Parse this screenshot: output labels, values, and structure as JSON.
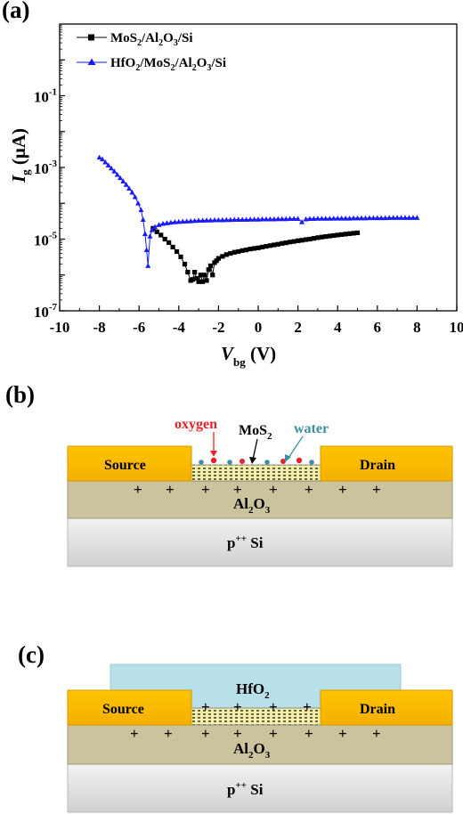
{
  "panels": {
    "a": "(a)",
    "b": "(b)",
    "c": "(c)"
  },
  "chart_data": {
    "type": "scatter",
    "title": "",
    "xlabel": {
      "main": "V",
      "sub": "bg",
      "unit": " (V)"
    },
    "ylabel": {
      "main": "I",
      "sub": "g",
      "unit": " (μA)"
    },
    "xlim": [
      -10,
      10
    ],
    "ylim": [
      1e-07,
      10
    ],
    "yscale": "log",
    "xticks": [
      -10,
      -8,
      -6,
      -4,
      -2,
      0,
      2,
      4,
      6,
      8,
      10
    ],
    "xtick_labels": [
      "-10",
      "-8",
      "-6",
      "-4",
      "-2",
      "0",
      "2",
      "4",
      "6",
      "8",
      "10"
    ],
    "yticks": [
      {
        "exp": -7,
        "base": "10",
        "sup": "-7"
      },
      {
        "exp": -5,
        "base": "10",
        "sup": "-5"
      },
      {
        "exp": -3,
        "base": "10",
        "sup": "-3"
      },
      {
        "exp": -1,
        "base": "10",
        "sup": "-1"
      }
    ],
    "grid": false,
    "legend_position": "top-left",
    "series": [
      {
        "name": "MoS2/Al2O3/Si",
        "legend": [
          [
            "MoS",
            null
          ],
          [
            "2",
            "sub"
          ],
          [
            "/Al",
            null
          ],
          [
            "2",
            "sub"
          ],
          [
            "O",
            null
          ],
          [
            "3",
            "sub"
          ],
          [
            "/Si",
            null
          ]
        ],
        "color": "#000000",
        "marker": "square",
        "x": [
          -5.3,
          -5.1,
          -4.9,
          -4.7,
          -4.5,
          -4.3,
          -4.1,
          -3.9,
          -3.7,
          -3.55,
          -3.4,
          -3.3,
          -3.2,
          -3.1,
          -3.0,
          -2.9,
          -2.8,
          -2.7,
          -2.6,
          -2.5,
          -2.4,
          -2.3,
          -2.2,
          -2.1,
          -2.0,
          -1.8,
          -1.6,
          -1.4,
          -1.2,
          -1.0,
          -0.8,
          -0.6,
          -0.4,
          -0.2,
          0.0,
          0.2,
          0.4,
          0.6,
          0.8,
          1.0,
          1.2,
          1.4,
          1.6,
          1.8,
          2.0,
          2.2,
          2.4,
          2.6,
          2.8,
          3.0,
          3.2,
          3.4,
          3.6,
          3.8,
          4.0,
          4.2,
          4.4,
          4.6,
          4.8,
          5.0
        ],
        "y": [
          2e-05,
          1.6e-05,
          1.3e-05,
          1e-05,
          8e-06,
          6e-06,
          4.5e-06,
          3.2e-06,
          2e-06,
          1.2e-06,
          7e-07,
          7.5e-07,
          1.2e-06,
          8e-07,
          6.5e-07,
          1e-06,
          6.5e-07,
          1e-06,
          7e-07,
          1.4e-06,
          1.8e-06,
          1e-06,
          2.2e-06,
          2.5e-06,
          2.9e-06,
          3.3e-06,
          3.7e-06,
          4e-06,
          4.3e-06,
          4.5e-06,
          4.8e-06,
          5e-06,
          5.3e-06,
          5.5e-06,
          5.7e-06,
          6e-06,
          6.3e-06,
          6.6e-06,
          6.9e-06,
          7.2e-06,
          7.6e-06,
          7.9e-06,
          8.3e-06,
          8.6e-06,
          9e-06,
          9.3e-06,
          9.7e-06,
          1e-05,
          1.05e-05,
          1.1e-05,
          1.14e-05,
          1.18e-05,
          1.22e-05,
          1.26e-05,
          1.3e-05,
          1.34e-05,
          1.38e-05,
          1.42e-05,
          1.46e-05,
          1.5e-05
        ]
      },
      {
        "name": "HfO2/MoS2/Al2O3/Si",
        "legend": [
          [
            "HfO",
            null
          ],
          [
            "2",
            "sub"
          ],
          [
            "/MoS",
            null
          ],
          [
            "2",
            "sub"
          ],
          [
            "/Al",
            null
          ],
          [
            "2",
            "sub"
          ],
          [
            "O",
            null
          ],
          [
            "3",
            "sub"
          ],
          [
            "/Si",
            null
          ]
        ],
        "color": "#1a1aff",
        "marker": "triangle",
        "x": [
          -8.0,
          -7.85,
          -7.7,
          -7.55,
          -7.4,
          -7.25,
          -7.1,
          -6.95,
          -6.8,
          -6.65,
          -6.5,
          -6.35,
          -6.2,
          -6.05,
          -5.9,
          -5.8,
          -5.7,
          -5.62,
          -5.55,
          -5.45,
          -5.35,
          -5.2,
          -5.0,
          -4.8,
          -4.6,
          -4.4,
          -4.2,
          -4.0,
          -3.8,
          -3.6,
          -3.4,
          -3.2,
          -3.0,
          -2.8,
          -2.6,
          -2.4,
          -2.2,
          -2.0,
          -1.8,
          -1.6,
          -1.4,
          -1.2,
          -1.0,
          -0.8,
          -0.6,
          -0.4,
          -0.2,
          0.0,
          0.2,
          0.4,
          0.6,
          0.8,
          1.0,
          1.2,
          1.4,
          1.6,
          1.8,
          2.0,
          2.2,
          2.4,
          2.6,
          2.8,
          3.0,
          3.2,
          3.4,
          3.6,
          3.8,
          4.0,
          4.2,
          4.4,
          4.6,
          4.8,
          5.0,
          5.2,
          5.4,
          5.6,
          5.8,
          6.0,
          6.2,
          6.4,
          6.6,
          6.8,
          7.0,
          7.2,
          7.4,
          7.6,
          7.8,
          8.0
        ],
        "y": [
          0.0019,
          0.0017,
          0.0014,
          0.00115,
          0.00095,
          0.00078,
          0.00063,
          0.00051,
          0.00041,
          0.00033,
          0.00026,
          0.0002,
          0.00015,
          0.0001,
          6.5e-05,
          3.5e-05,
          1.4e-05,
          5e-06,
          1.8e-06,
          1.2e-05,
          1.8e-05,
          2.2e-05,
          2.5e-05,
          2.7e-05,
          2.8e-05,
          2.9e-05,
          3e-05,
          3.05e-05,
          3.1e-05,
          3.15e-05,
          3.2e-05,
          3.25e-05,
          3.3e-05,
          3.3e-05,
          3.35e-05,
          3.35e-05,
          3.4e-05,
          3.4e-05,
          3.4e-05,
          3.45e-05,
          3.45e-05,
          3.5e-05,
          3.5e-05,
          3.5e-05,
          3.5e-05,
          3.55e-05,
          3.55e-05,
          3.55e-05,
          3.6e-05,
          3.6e-05,
          3.6e-05,
          3.6e-05,
          3.65e-05,
          3.65e-05,
          3.65e-05,
          3.7e-05,
          3.7e-05,
          3.7e-05,
          3e-05,
          3.6e-05,
          3.7e-05,
          3.7e-05,
          3.75e-05,
          3.75e-05,
          3.75e-05,
          3.75e-05,
          3.8e-05,
          3.8e-05,
          3.8e-05,
          3.8e-05,
          3.8e-05,
          3.85e-05,
          3.85e-05,
          3.85e-05,
          3.85e-05,
          3.9e-05,
          3.9e-05,
          3.9e-05,
          3.9e-05,
          3.9e-05,
          3.95e-05,
          3.95e-05,
          3.95e-05,
          3.95e-05,
          3.95e-05,
          3.95e-05,
          3.95e-05,
          3.95e-05
        ]
      }
    ]
  },
  "diagram_b": {
    "source": "Source",
    "drain": "Drain",
    "substrate": "p",
    "substrate_sup": "++",
    "substrate_suffix": " Si",
    "dielectric": "Al",
    "dielectric_sub1": "2",
    "dielectric_mid": "O",
    "dielectric_sub2": "3",
    "oxygen": "oxygen",
    "water": "water",
    "channel": "MoS",
    "channel_sub": "2",
    "plus": "+",
    "colors": {
      "electrode": "#fcbb00",
      "oxide": "#cbc39d",
      "substrate": "#dcdcdc",
      "oxygen": "#e8212a",
      "water": "#3a8fa3",
      "hfo2": "#b8e0e8"
    }
  },
  "diagram_c": {
    "source": "Source",
    "drain": "Drain",
    "substrate": "p",
    "substrate_sup": "++",
    "substrate_suffix": " Si",
    "dielectric": "Al",
    "dielectric_sub1": "2",
    "dielectric_mid": "O",
    "dielectric_sub2": "3",
    "capping": "HfO",
    "capping_sub": "2",
    "plus": "+"
  }
}
